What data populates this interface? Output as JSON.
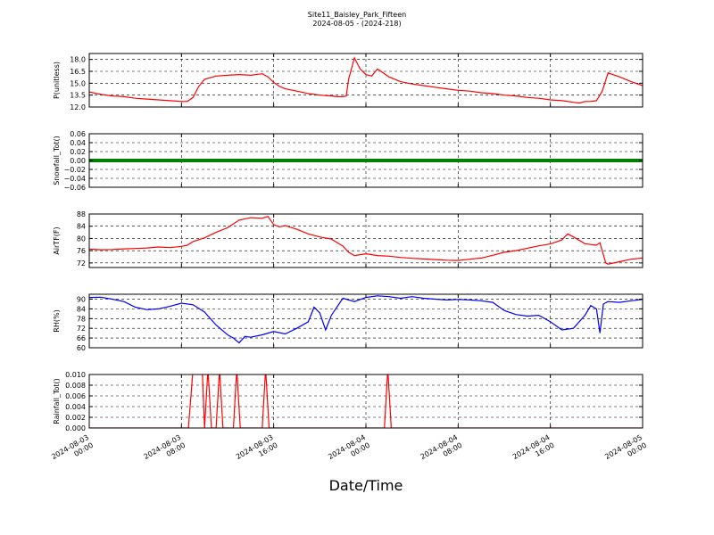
{
  "title_line1": "Site11_Baisley_Park_Fifteen",
  "title_line2": "2024-08-05 - (2024-218)",
  "xlabel": "Date/Time",
  "x_ticks": [
    {
      "hour": 0,
      "line1": "2024-08-03",
      "line2": "00:00"
    },
    {
      "hour": 8,
      "line1": "2024-08-03",
      "line2": "08:00"
    },
    {
      "hour": 16,
      "line1": "2024-08-03",
      "line2": "16:00"
    },
    {
      "hour": 24,
      "line1": "2024-08-04",
      "line2": "00:00"
    },
    {
      "hour": 32,
      "line1": "2024-08-04",
      "line2": "08:00"
    },
    {
      "hour": 40,
      "line1": "2024-08-04",
      "line2": "16:00"
    },
    {
      "hour": 48,
      "line1": "2024-08-05",
      "line2": "00:00"
    }
  ],
  "chart_data": [
    {
      "type": "line",
      "ylabel": "P(unitless)",
      "ylim": [
        12.0,
        18.75
      ],
      "yticks": [
        12.0,
        13.5,
        15.0,
        16.5,
        18.0
      ],
      "ytick_labels": [
        "12.0",
        "13.5",
        "15.0",
        "16.5",
        "18.0"
      ],
      "grid": true,
      "color": "#ff0000",
      "points": [
        [
          0,
          13.9
        ],
        [
          1,
          13.6
        ],
        [
          2,
          13.4
        ],
        [
          3,
          13.3
        ],
        [
          4,
          13.1
        ],
        [
          5,
          13.0
        ],
        [
          6,
          12.9
        ],
        [
          7,
          12.8
        ],
        [
          8,
          12.7
        ],
        [
          8.5,
          12.7
        ],
        [
          9,
          13.2
        ],
        [
          9.5,
          14.6
        ],
        [
          10,
          15.5
        ],
        [
          11,
          15.9
        ],
        [
          12,
          16.0
        ],
        [
          13,
          16.1
        ],
        [
          14,
          16.0
        ],
        [
          15,
          16.2
        ],
        [
          15.5,
          15.8
        ],
        [
          16,
          15.1
        ],
        [
          16.5,
          14.6
        ],
        [
          17,
          14.3
        ],
        [
          18,
          14.0
        ],
        [
          19,
          13.7
        ],
        [
          20,
          13.5
        ],
        [
          21,
          13.4
        ],
        [
          21.5,
          13.3
        ],
        [
          22,
          13.3
        ],
        [
          22.3,
          13.4
        ],
        [
          22.5,
          15.5
        ],
        [
          23,
          18.2
        ],
        [
          23.5,
          16.8
        ],
        [
          24,
          16.1
        ],
        [
          24.5,
          15.9
        ],
        [
          25,
          16.8
        ],
        [
          25.5,
          16.3
        ],
        [
          26,
          15.8
        ],
        [
          27,
          15.2
        ],
        [
          28,
          14.9
        ],
        [
          29,
          14.7
        ],
        [
          30,
          14.5
        ],
        [
          31,
          14.3
        ],
        [
          32,
          14.1
        ],
        [
          33,
          14.0
        ],
        [
          34,
          13.8
        ],
        [
          35,
          13.7
        ],
        [
          36,
          13.5
        ],
        [
          37,
          13.4
        ],
        [
          38,
          13.2
        ],
        [
          39,
          13.1
        ],
        [
          40,
          12.9
        ],
        [
          41,
          12.8
        ],
        [
          42,
          12.6
        ],
        [
          42.5,
          12.5
        ],
        [
          43,
          12.7
        ],
        [
          43.5,
          12.7
        ],
        [
          44,
          12.8
        ],
        [
          44.5,
          14.0
        ],
        [
          45,
          16.3
        ],
        [
          46,
          15.8
        ],
        [
          47,
          15.2
        ],
        [
          48,
          14.7
        ]
      ]
    },
    {
      "type": "scatter",
      "ylabel": "Snowfall_Tot()",
      "ylim": [
        -0.06,
        0.06
      ],
      "yticks": [
        -0.06,
        -0.04,
        -0.02,
        0.0,
        0.02,
        0.04,
        0.06
      ],
      "ytick_labels": [
        "−0.06",
        "−0.04",
        "−0.02",
        "0.00",
        "0.02",
        "0.04",
        "0.06"
      ],
      "grid": true,
      "color": "#008000",
      "points": [
        [
          0,
          0.0
        ],
        [
          48,
          0.0
        ]
      ]
    },
    {
      "type": "line",
      "ylabel": "AirTF(F)",
      "ylim": [
        70.5,
        88.0
      ],
      "yticks": [
        72,
        76,
        80,
        84,
        88
      ],
      "ytick_labels": [
        "72",
        "76",
        "80",
        "84",
        "88"
      ],
      "grid": true,
      "color": "#ff0000",
      "points": [
        [
          0,
          76.5
        ],
        [
          1,
          76.3
        ],
        [
          2,
          76.4
        ],
        [
          3,
          76.6
        ],
        [
          4,
          76.7
        ],
        [
          5,
          76.9
        ],
        [
          6,
          77.2
        ],
        [
          7,
          77.0
        ],
        [
          8,
          77.4
        ],
        [
          8.5,
          77.8
        ],
        [
          9,
          79.0
        ],
        [
          10,
          80.2
        ],
        [
          11,
          82.0
        ],
        [
          12,
          83.5
        ],
        [
          13,
          86.0
        ],
        [
          14,
          86.8
        ],
        [
          15,
          86.6
        ],
        [
          15.5,
          87.2
        ],
        [
          16,
          84.5
        ],
        [
          16.5,
          83.8
        ],
        [
          17,
          84.2
        ],
        [
          18,
          83.0
        ],
        [
          19,
          81.5
        ],
        [
          20,
          80.5
        ],
        [
          21,
          79.8
        ],
        [
          22,
          77.5
        ],
        [
          22.5,
          75.5
        ],
        [
          23,
          74.4
        ],
        [
          24,
          75.0
        ],
        [
          25,
          74.4
        ],
        [
          26,
          74.2
        ],
        [
          27,
          73.8
        ],
        [
          28,
          73.5
        ],
        [
          29,
          73.3
        ],
        [
          30,
          73.1
        ],
        [
          31,
          72.9
        ],
        [
          32,
          72.8
        ],
        [
          33,
          73.2
        ],
        [
          34,
          73.6
        ],
        [
          35,
          74.5
        ],
        [
          36,
          75.5
        ],
        [
          37,
          76.0
        ],
        [
          38,
          76.8
        ],
        [
          39,
          77.6
        ],
        [
          40,
          78.2
        ],
        [
          41,
          79.5
        ],
        [
          41.5,
          81.5
        ],
        [
          42,
          80.5
        ],
        [
          43,
          78.3
        ],
        [
          44,
          77.8
        ],
        [
          44.3,
          78.6
        ],
        [
          44.8,
          72.0
        ],
        [
          45,
          71.6
        ],
        [
          46,
          72.4
        ],
        [
          47,
          73.2
        ],
        [
          48,
          73.6
        ]
      ]
    },
    {
      "type": "line",
      "ylabel": "RH(%)",
      "ylim": [
        60,
        93
      ],
      "yticks": [
        60,
        66,
        72,
        78,
        84,
        90
      ],
      "ytick_labels": [
        "60",
        "66",
        "72",
        "78",
        "84",
        "90"
      ],
      "grid": true,
      "color": "#0000ff",
      "points": [
        [
          0,
          91.0
        ],
        [
          1,
          91.2
        ],
        [
          2,
          90.0
        ],
        [
          3,
          88.5
        ],
        [
          4,
          85.0
        ],
        [
          5,
          83.5
        ],
        [
          6,
          84.0
        ],
        [
          7,
          85.5
        ],
        [
          8,
          87.5
        ],
        [
          9,
          86.5
        ],
        [
          10,
          82.0
        ],
        [
          11,
          74.0
        ],
        [
          12,
          68.0
        ],
        [
          12.5,
          66.0
        ],
        [
          13,
          63.0
        ],
        [
          13.5,
          67.0
        ],
        [
          14,
          66.5
        ],
        [
          15,
          68.0
        ],
        [
          16,
          70.0
        ],
        [
          17,
          68.5
        ],
        [
          18,
          72.0
        ],
        [
          19,
          76.0
        ],
        [
          19.5,
          85.0
        ],
        [
          20,
          81.5
        ],
        [
          20.5,
          71.0
        ],
        [
          21,
          80.0
        ],
        [
          22,
          90.5
        ],
        [
          23,
          88.5
        ],
        [
          24,
          91.0
        ],
        [
          25,
          92.0
        ],
        [
          26,
          91.5
        ],
        [
          27,
          90.5
        ],
        [
          28,
          91.5
        ],
        [
          29,
          90.5
        ],
        [
          30,
          90.0
        ],
        [
          31,
          89.5
        ],
        [
          32,
          89.8
        ],
        [
          33,
          89.5
        ],
        [
          34,
          89.0
        ],
        [
          35,
          88.0
        ],
        [
          36,
          83.0
        ],
        [
          37,
          80.5
        ],
        [
          38,
          79.5
        ],
        [
          39,
          80.0
        ],
        [
          40,
          76.0
        ],
        [
          41,
          71.0
        ],
        [
          42,
          72.0
        ],
        [
          43,
          80.0
        ],
        [
          43.5,
          86.0
        ],
        [
          44,
          84.0
        ],
        [
          44.3,
          69.0
        ],
        [
          44.6,
          87.0
        ],
        [
          45,
          88.5
        ],
        [
          46,
          88.0
        ],
        [
          47,
          89.0
        ],
        [
          48,
          89.8
        ]
      ]
    },
    {
      "type": "line",
      "ylabel": "Rainfall_Tot()",
      "ylim": [
        0.0,
        0.01
      ],
      "yticks": [
        0.0,
        0.002,
        0.004,
        0.006,
        0.008,
        0.01
      ],
      "ytick_labels": [
        "0.000",
        "0.002",
        "0.004",
        "0.006",
        "0.008",
        "0.010"
      ],
      "grid": true,
      "color": "#ff0000",
      "points": [
        [
          0,
          0
        ],
        [
          8.6,
          0
        ],
        [
          9.0,
          0.011
        ],
        [
          9.8,
          0.011
        ],
        [
          10.0,
          0
        ],
        [
          10.3,
          0.011
        ],
        [
          10.6,
          0
        ],
        [
          11.0,
          0
        ],
        [
          11.3,
          0.011
        ],
        [
          11.6,
          0
        ],
        [
          12.5,
          0
        ],
        [
          12.8,
          0.011
        ],
        [
          13.1,
          0
        ],
        [
          15.0,
          0
        ],
        [
          15.3,
          0.011
        ],
        [
          15.6,
          0
        ],
        [
          25.6,
          0
        ],
        [
          25.9,
          0.011
        ],
        [
          26.2,
          0
        ],
        [
          48,
          0
        ]
      ]
    }
  ]
}
